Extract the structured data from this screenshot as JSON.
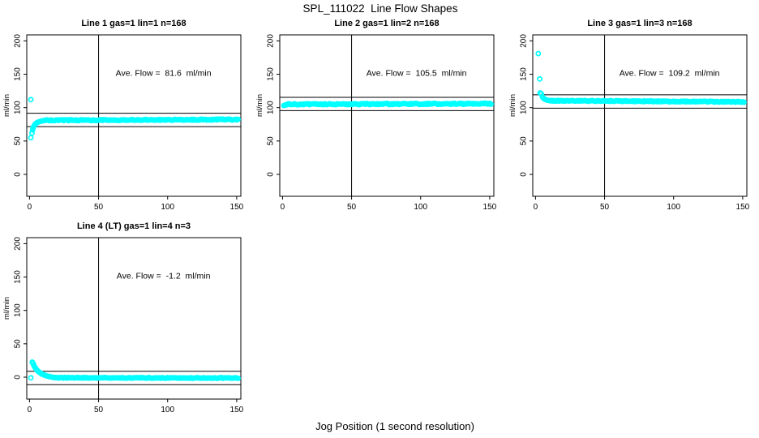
{
  "figure": {
    "title": "SPL_111022  Line Flow Shapes",
    "xlabel": "Jog Position (1 second resolution)",
    "background": "#ffffff",
    "point_color": "#00FFFF",
    "axis_color": "#000000"
  },
  "chart_data": [
    {
      "type": "scatter",
      "title": "Line 1 gas=1 lin=1 n=168",
      "ylabel": "ml/min",
      "annotation": "Ave. Flow =  81.6  ml/min",
      "ave_flow": 81.6,
      "xlim": [
        -2,
        153
      ],
      "ylim": [
        -32.8,
        209
      ],
      "xticks": [
        0,
        50,
        100,
        150
      ],
      "yticks": [
        0,
        50,
        100,
        150,
        200
      ],
      "vline_x": 50,
      "hlines": [
        91.6,
        71.6
      ],
      "marker": "open-circle",
      "annotation_xy": [
        97,
        152
      ],
      "lead_points": [
        [
          1,
          112
        ],
        [
          1,
          55
        ],
        [
          1.8,
          62
        ],
        [
          2.2,
          66.5
        ],
        [
          2.6,
          69.5
        ],
        [
          3,
          71.5
        ],
        [
          3.5,
          73.5
        ],
        [
          4,
          75
        ],
        [
          4.7,
          76.5
        ],
        [
          5.5,
          77.5
        ],
        [
          6.3,
          78.3
        ],
        [
          7.2,
          79
        ],
        [
          8.1,
          79.6
        ],
        [
          9,
          80.1
        ],
        [
          10,
          80.5
        ],
        [
          11,
          80.8
        ]
      ],
      "steady_band": {
        "x_start": 12,
        "x_end": 151,
        "n": 155,
        "level_start": 81.0,
        "level_end": 82.2,
        "jitter": 0.75,
        "seed": 7
      }
    },
    {
      "type": "scatter",
      "title": "Line 2 gas=1 lin=2 n=168",
      "ylabel": "ml/min",
      "annotation": "Ave. Flow =  105.5  ml/min",
      "ave_flow": 105.5,
      "xlim": [
        -2,
        153
      ],
      "ylim": [
        -32.8,
        209
      ],
      "xticks": [
        0,
        50,
        100,
        150
      ],
      "yticks": [
        0,
        50,
        100,
        150,
        200
      ],
      "vline_x": 50,
      "hlines": [
        115.5,
        95.5
      ],
      "marker": "open-circle",
      "annotation_xy": [
        97,
        152
      ],
      "lead_points": [
        [
          1,
          103.2
        ],
        [
          1.8,
          103.8
        ],
        [
          2.6,
          104.2
        ],
        [
          3.4,
          104.6
        ]
      ],
      "steady_band": {
        "x_start": 4,
        "x_end": 151,
        "n": 162,
        "level_start": 104.9,
        "level_end": 105.9,
        "jitter": 0.85,
        "seed": 11
      }
    },
    {
      "type": "scatter",
      "title": "Line 3 gas=1 lin=3 n=168",
      "ylabel": "ml/min",
      "annotation": "Ave. Flow =  109.2  ml/min",
      "ave_flow": 109.2,
      "xlim": [
        -2,
        153
      ],
      "ylim": [
        -32.8,
        209
      ],
      "xticks": [
        0,
        50,
        100,
        150
      ],
      "yticks": [
        0,
        50,
        100,
        150,
        200
      ],
      "vline_x": 50,
      "hlines": [
        119.2,
        99.2
      ],
      "marker": "open-circle",
      "annotation_xy": [
        97,
        152
      ],
      "lead_points": [
        [
          2,
          181
        ],
        [
          3,
          143
        ],
        [
          3.3,
          122
        ],
        [
          4.2,
          120.5
        ],
        [
          5,
          116
        ],
        [
          5.8,
          114
        ],
        [
          6.6,
          112.8
        ],
        [
          7.4,
          112
        ],
        [
          8.2,
          111.4
        ],
        [
          9,
          111
        ],
        [
          10,
          110.7
        ]
      ],
      "steady_band": {
        "x_start": 11,
        "x_end": 151,
        "n": 158,
        "level_start": 110.4,
        "level_end": 108.6,
        "jitter": 0.65,
        "seed": 3
      }
    },
    {
      "type": "scatter",
      "title": "Line 4 (LT) gas=1 lin=4 n=3",
      "ylabel": "ml/min",
      "annotation": "Ave. Flow =  -1.2  ml/min",
      "ave_flow": -1.2,
      "xlim": [
        -2,
        153
      ],
      "ylim": [
        -32.8,
        209
      ],
      "xticks": [
        0,
        50,
        100,
        150
      ],
      "yticks": [
        0,
        50,
        100,
        150,
        200
      ],
      "vline_x": 50,
      "hlines": [
        8.8,
        -11.2
      ],
      "marker": "open-circle",
      "annotation_xy": [
        97,
        152
      ],
      "lead_points": [
        [
          1,
          -1
        ],
        [
          2,
          22.5
        ],
        [
          2.4,
          21
        ],
        [
          3,
          18.5
        ],
        [
          3.4,
          16.5
        ],
        [
          4,
          14.5
        ],
        [
          4.5,
          13
        ],
        [
          5,
          11.5
        ],
        [
          5.5,
          10.3
        ],
        [
          6,
          9.2
        ],
        [
          6.6,
          8.2
        ],
        [
          7.2,
          7.2
        ],
        [
          7.8,
          6.3
        ],
        [
          8.4,
          5.5
        ],
        [
          9,
          4.8
        ],
        [
          9.7,
          4.1
        ],
        [
          10.4,
          3.4
        ],
        [
          11.2,
          2.8
        ],
        [
          12,
          2.2
        ],
        [
          13,
          1.6
        ],
        [
          14,
          1.1
        ],
        [
          15,
          0.6
        ],
        [
          16,
          0.2
        ],
        [
          17,
          -0.2
        ],
        [
          18,
          -0.5
        ]
      ],
      "steady_band": {
        "x_start": 19,
        "x_end": 151,
        "n": 145,
        "level_start": -0.9,
        "level_end": -1.3,
        "jitter": 0.55,
        "seed": 5
      }
    }
  ]
}
